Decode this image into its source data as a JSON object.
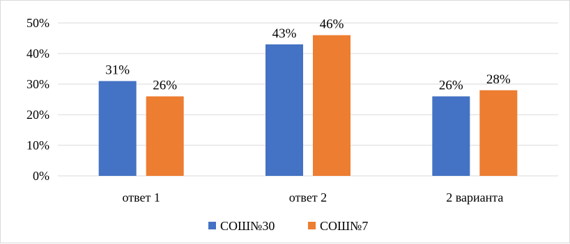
{
  "chart_data": {
    "type": "bar",
    "title": "",
    "xlabel": "",
    "ylabel": "",
    "categories": [
      "ответ 1",
      "ответ 2",
      "2 варианта"
    ],
    "series": [
      {
        "name": "СОШ№30",
        "values": [
          31,
          43,
          26
        ],
        "labels": [
          "31%",
          "43%",
          "26%"
        ],
        "color": "#4472C4"
      },
      {
        "name": "СОШ№7",
        "values": [
          26,
          46,
          28
        ],
        "labels": [
          "26%",
          "46%",
          "28%"
        ],
        "color": "#ED7D31"
      }
    ],
    "ylim": [
      0,
      50
    ],
    "yticks": [
      0,
      10,
      20,
      30,
      40,
      50
    ],
    "ytick_labels": [
      "0%",
      "10%",
      "20%",
      "30%",
      "40%",
      "50%"
    ],
    "grid": true,
    "gridline_color": "#d9d9d9",
    "legend": "bottom"
  }
}
